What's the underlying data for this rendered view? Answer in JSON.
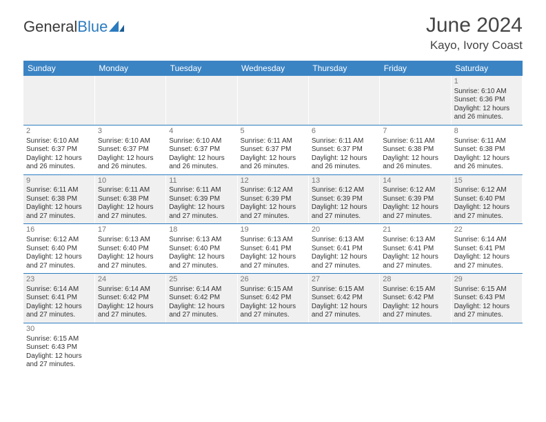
{
  "logo": {
    "text_general": "General",
    "text_blue": "Blue"
  },
  "title": {
    "month_year": "June 2024",
    "location": "Kayo, Ivory Coast"
  },
  "weekdays": [
    "Sunday",
    "Monday",
    "Tuesday",
    "Wednesday",
    "Thursday",
    "Friday",
    "Saturday"
  ],
  "colors": {
    "header_bg": "#3b84c4",
    "header_text": "#ffffff",
    "row_odd_bg": "#f0f0f0",
    "row_even_bg": "#ffffff",
    "border": "#2b7bbf",
    "daynum": "#777777",
    "body_text": "#333333",
    "title_text": "#444444",
    "logo_general": "#3a3a3a",
    "logo_blue": "#2b7bbf"
  },
  "lead_blanks": 6,
  "days": [
    {
      "n": 1,
      "sunrise": "Sunrise: 6:10 AM",
      "sunset": "Sunset: 6:36 PM",
      "daylight": "Daylight: 12 hours and 26 minutes."
    },
    {
      "n": 2,
      "sunrise": "Sunrise: 6:10 AM",
      "sunset": "Sunset: 6:37 PM",
      "daylight": "Daylight: 12 hours and 26 minutes."
    },
    {
      "n": 3,
      "sunrise": "Sunrise: 6:10 AM",
      "sunset": "Sunset: 6:37 PM",
      "daylight": "Daylight: 12 hours and 26 minutes."
    },
    {
      "n": 4,
      "sunrise": "Sunrise: 6:10 AM",
      "sunset": "Sunset: 6:37 PM",
      "daylight": "Daylight: 12 hours and 26 minutes."
    },
    {
      "n": 5,
      "sunrise": "Sunrise: 6:11 AM",
      "sunset": "Sunset: 6:37 PM",
      "daylight": "Daylight: 12 hours and 26 minutes."
    },
    {
      "n": 6,
      "sunrise": "Sunrise: 6:11 AM",
      "sunset": "Sunset: 6:37 PM",
      "daylight": "Daylight: 12 hours and 26 minutes."
    },
    {
      "n": 7,
      "sunrise": "Sunrise: 6:11 AM",
      "sunset": "Sunset: 6:38 PM",
      "daylight": "Daylight: 12 hours and 26 minutes."
    },
    {
      "n": 8,
      "sunrise": "Sunrise: 6:11 AM",
      "sunset": "Sunset: 6:38 PM",
      "daylight": "Daylight: 12 hours and 26 minutes."
    },
    {
      "n": 9,
      "sunrise": "Sunrise: 6:11 AM",
      "sunset": "Sunset: 6:38 PM",
      "daylight": "Daylight: 12 hours and 27 minutes."
    },
    {
      "n": 10,
      "sunrise": "Sunrise: 6:11 AM",
      "sunset": "Sunset: 6:38 PM",
      "daylight": "Daylight: 12 hours and 27 minutes."
    },
    {
      "n": 11,
      "sunrise": "Sunrise: 6:11 AM",
      "sunset": "Sunset: 6:39 PM",
      "daylight": "Daylight: 12 hours and 27 minutes."
    },
    {
      "n": 12,
      "sunrise": "Sunrise: 6:12 AM",
      "sunset": "Sunset: 6:39 PM",
      "daylight": "Daylight: 12 hours and 27 minutes."
    },
    {
      "n": 13,
      "sunrise": "Sunrise: 6:12 AM",
      "sunset": "Sunset: 6:39 PM",
      "daylight": "Daylight: 12 hours and 27 minutes."
    },
    {
      "n": 14,
      "sunrise": "Sunrise: 6:12 AM",
      "sunset": "Sunset: 6:39 PM",
      "daylight": "Daylight: 12 hours and 27 minutes."
    },
    {
      "n": 15,
      "sunrise": "Sunrise: 6:12 AM",
      "sunset": "Sunset: 6:40 PM",
      "daylight": "Daylight: 12 hours and 27 minutes."
    },
    {
      "n": 16,
      "sunrise": "Sunrise: 6:12 AM",
      "sunset": "Sunset: 6:40 PM",
      "daylight": "Daylight: 12 hours and 27 minutes."
    },
    {
      "n": 17,
      "sunrise": "Sunrise: 6:13 AM",
      "sunset": "Sunset: 6:40 PM",
      "daylight": "Daylight: 12 hours and 27 minutes."
    },
    {
      "n": 18,
      "sunrise": "Sunrise: 6:13 AM",
      "sunset": "Sunset: 6:40 PM",
      "daylight": "Daylight: 12 hours and 27 minutes."
    },
    {
      "n": 19,
      "sunrise": "Sunrise: 6:13 AM",
      "sunset": "Sunset: 6:41 PM",
      "daylight": "Daylight: 12 hours and 27 minutes."
    },
    {
      "n": 20,
      "sunrise": "Sunrise: 6:13 AM",
      "sunset": "Sunset: 6:41 PM",
      "daylight": "Daylight: 12 hours and 27 minutes."
    },
    {
      "n": 21,
      "sunrise": "Sunrise: 6:13 AM",
      "sunset": "Sunset: 6:41 PM",
      "daylight": "Daylight: 12 hours and 27 minutes."
    },
    {
      "n": 22,
      "sunrise": "Sunrise: 6:14 AM",
      "sunset": "Sunset: 6:41 PM",
      "daylight": "Daylight: 12 hours and 27 minutes."
    },
    {
      "n": 23,
      "sunrise": "Sunrise: 6:14 AM",
      "sunset": "Sunset: 6:41 PM",
      "daylight": "Daylight: 12 hours and 27 minutes."
    },
    {
      "n": 24,
      "sunrise": "Sunrise: 6:14 AM",
      "sunset": "Sunset: 6:42 PM",
      "daylight": "Daylight: 12 hours and 27 minutes."
    },
    {
      "n": 25,
      "sunrise": "Sunrise: 6:14 AM",
      "sunset": "Sunset: 6:42 PM",
      "daylight": "Daylight: 12 hours and 27 minutes."
    },
    {
      "n": 26,
      "sunrise": "Sunrise: 6:15 AM",
      "sunset": "Sunset: 6:42 PM",
      "daylight": "Daylight: 12 hours and 27 minutes."
    },
    {
      "n": 27,
      "sunrise": "Sunrise: 6:15 AM",
      "sunset": "Sunset: 6:42 PM",
      "daylight": "Daylight: 12 hours and 27 minutes."
    },
    {
      "n": 28,
      "sunrise": "Sunrise: 6:15 AM",
      "sunset": "Sunset: 6:42 PM",
      "daylight": "Daylight: 12 hours and 27 minutes."
    },
    {
      "n": 29,
      "sunrise": "Sunrise: 6:15 AM",
      "sunset": "Sunset: 6:43 PM",
      "daylight": "Daylight: 12 hours and 27 minutes."
    },
    {
      "n": 30,
      "sunrise": "Sunrise: 6:15 AM",
      "sunset": "Sunset: 6:43 PM",
      "daylight": "Daylight: 12 hours and 27 minutes."
    }
  ]
}
